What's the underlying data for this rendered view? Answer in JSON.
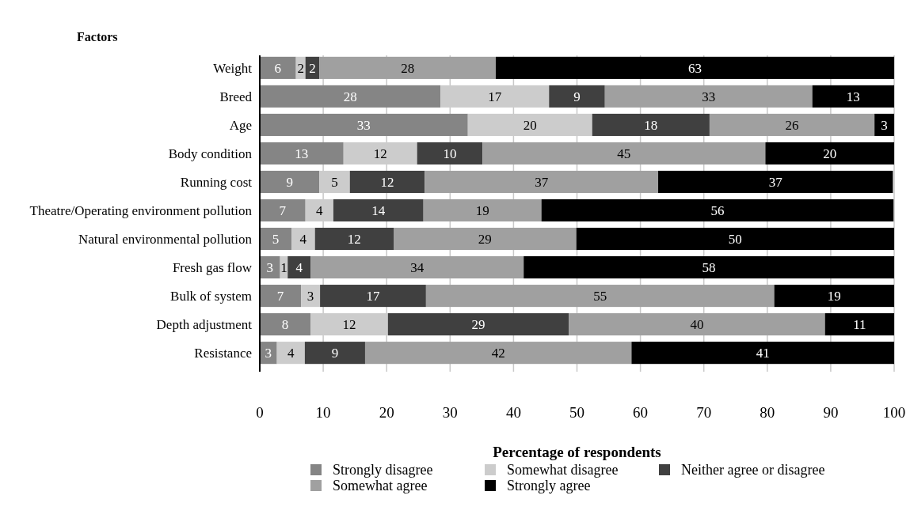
{
  "chart_data": {
    "type": "bar",
    "orientation": "horizontal",
    "stacked": true,
    "title": "Factors",
    "xlabel": "Percentage of respondents",
    "categories": [
      "Weight",
      "Breed",
      "Age",
      "Body condition",
      "Running cost",
      "Theatre/Operating environment pollution",
      "Natural environmental pollution",
      "Fresh gas flow",
      "Bulk of system",
      "Depth adjustment",
      "Resistance"
    ],
    "series": [
      {
        "name": "Strongly disagree",
        "color": "#858585",
        "values": [
          5.7,
          28.5,
          32.8,
          13.2,
          9.4,
          7.2,
          5,
          3.2,
          6.5,
          8,
          2.7
        ],
        "value_labels": [
          "6",
          "28",
          "33",
          "13",
          "9",
          "7",
          "5",
          "3",
          "7",
          "8",
          "3"
        ]
      },
      {
        "name": "Somewhat disagree",
        "color": "#cccccc",
        "values": [
          1.5,
          17.1,
          19.6,
          11.6,
          4.8,
          4.4,
          3.7,
          1.2,
          3,
          12.2,
          4.4
        ],
        "value_labels": [
          "2",
          "17",
          "20",
          "12",
          "5",
          "4",
          "4",
          "1",
          "3",
          "12",
          "4"
        ]
      },
      {
        "name": "Neither agree or disagree",
        "color": "#404040",
        "values": [
          2.2,
          8.8,
          18.5,
          10.3,
          11.8,
          14.2,
          12.4,
          3.6,
          16.7,
          28.5,
          9.5
        ],
        "value_labels": [
          "2",
          "9",
          "18",
          "10",
          "12",
          "14",
          "12",
          "4",
          "17",
          "29",
          "9"
        ]
      },
      {
        "name": "Somewhat agree",
        "color": "#a0a0a0",
        "values": [
          27.8,
          32.7,
          26,
          44.6,
          36.8,
          18.6,
          28.8,
          33.6,
          54.9,
          40.4,
          42
        ],
        "value_labels": [
          "28",
          "33",
          "26",
          "45",
          "37",
          "19",
          "29",
          "34",
          "55",
          "40",
          "42"
        ]
      },
      {
        "name": "Strongly agree",
        "color": "#000000",
        "values": [
          62.8,
          12.9,
          3.1,
          20.3,
          37,
          55.5,
          50.1,
          58.4,
          18.9,
          10.9,
          41.4
        ],
        "value_labels": [
          "63",
          "13",
          "3",
          "20",
          "37",
          "56",
          "50",
          "58",
          "19",
          "11",
          "41"
        ]
      }
    ],
    "xlim": [
      0,
      100
    ],
    "xticks": [
      0,
      10,
      20,
      30,
      40,
      50,
      60,
      70,
      80,
      90,
      100
    ],
    "grid": "x",
    "legend": "bottom"
  }
}
